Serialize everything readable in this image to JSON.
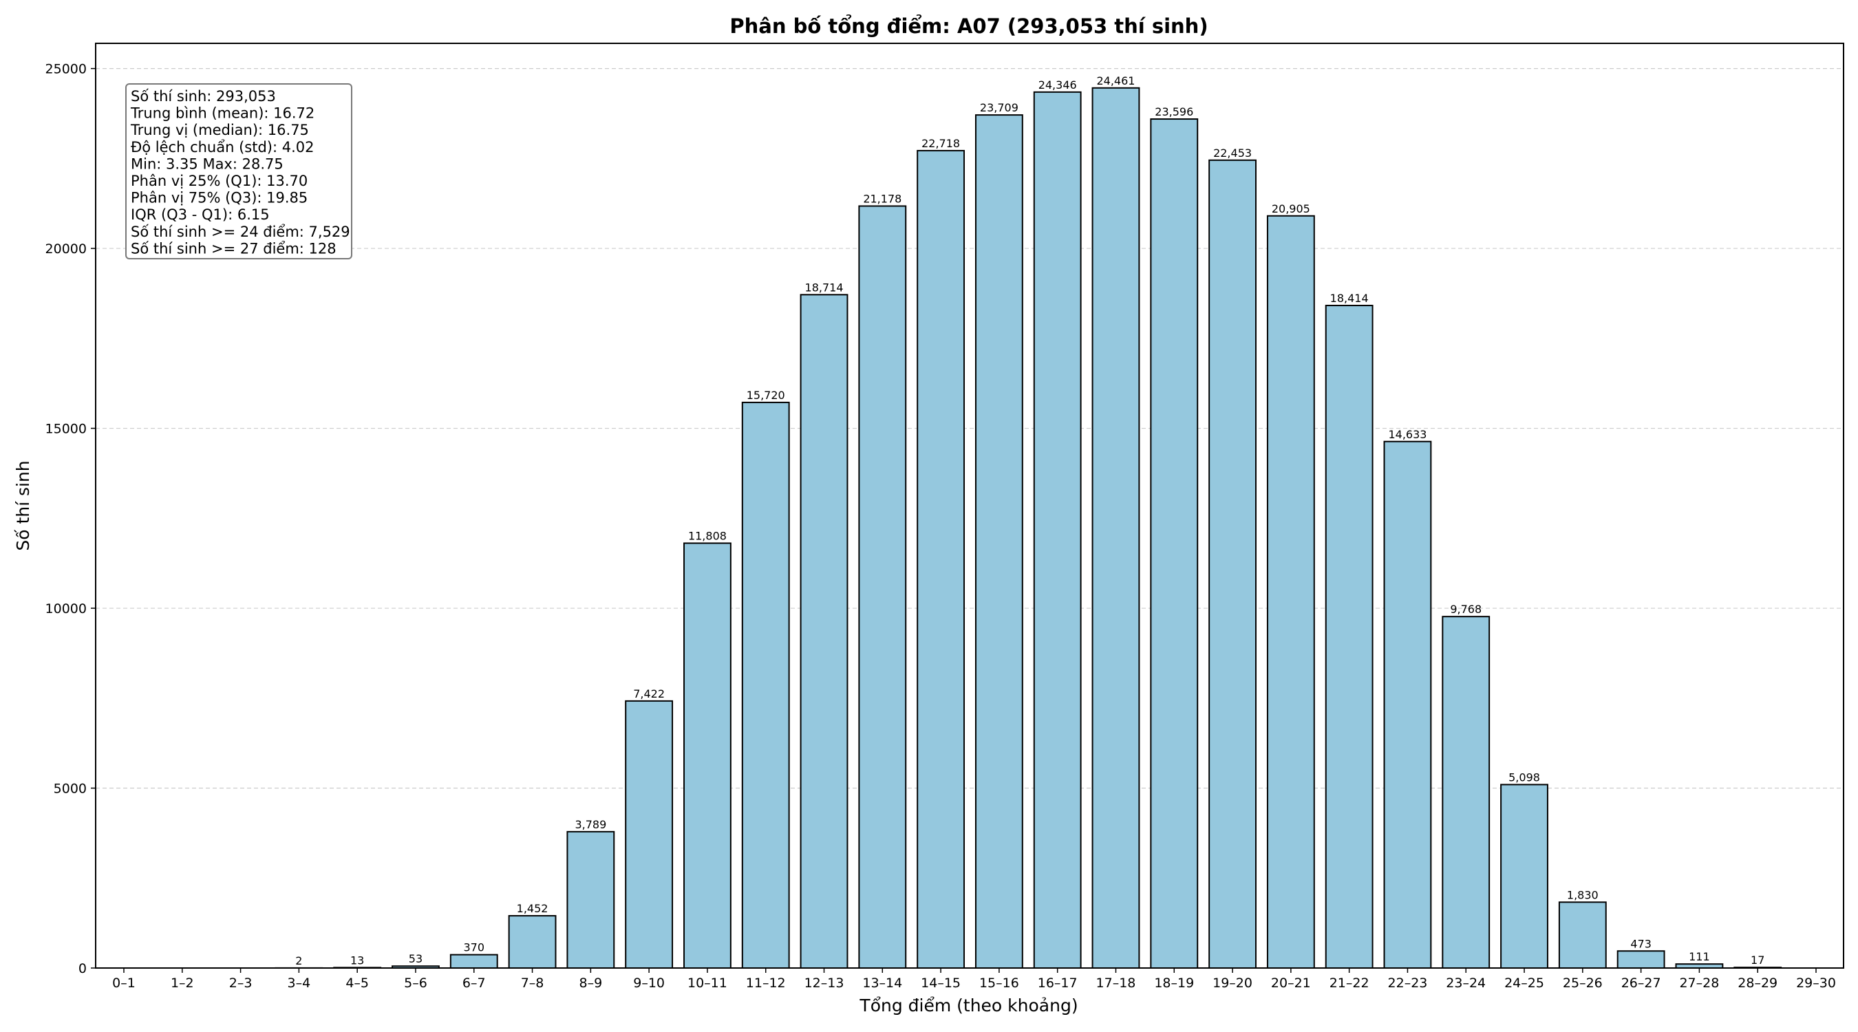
{
  "chart_data": {
    "type": "bar",
    "title": "Phân bố tổng điểm: A07 (293,053 thí sinh)",
    "xlabel": "Tổng điểm (theo khoảng)",
    "ylabel": "Số thí sinh",
    "ylim": [
      0,
      25700
    ],
    "yticks": [
      0,
      5000,
      10000,
      15000,
      20000,
      25000
    ],
    "grid": "y, dashed",
    "bar_color": "#95c8de",
    "edge_color": "#000000",
    "categories": [
      "0–1",
      "1–2",
      "2–3",
      "3–4",
      "4–5",
      "5–6",
      "6–7",
      "7–8",
      "8–9",
      "9–10",
      "10–11",
      "11–12",
      "12–13",
      "13–14",
      "14–15",
      "15–16",
      "16–17",
      "17–18",
      "18–19",
      "19–20",
      "20–21",
      "21–22",
      "22–23",
      "23–24",
      "24–25",
      "25–26",
      "26–27",
      "27–28",
      "28–29",
      "29–30"
    ],
    "values": [
      0,
      0,
      0,
      2,
      13,
      53,
      370,
      1452,
      3789,
      7422,
      11808,
      15720,
      18714,
      21178,
      22718,
      23709,
      24346,
      24461,
      23596,
      22453,
      20905,
      18414,
      14633,
      9768,
      5098,
      1830,
      473,
      111,
      17,
      0
    ],
    "value_labels": [
      "",
      "",
      "",
      "2",
      "13",
      "53",
      "370",
      "1,452",
      "3,789",
      "7,422",
      "11,808",
      "15,720",
      "18,714",
      "21,178",
      "22,718",
      "23,709",
      "24,346",
      "24,461",
      "23,596",
      "22,453",
      "20,905",
      "18,414",
      "14,633",
      "9,768",
      "5,098",
      "1,830",
      "473",
      "111",
      "17",
      ""
    ],
    "stats_box": [
      "Số thí sinh: 293,053",
      "Trung bình (mean): 16.72",
      "Trung vị (median): 16.75",
      "Độ lệch chuẩn (std): 4.02",
      "Min: 3.35   Max: 28.75",
      "Phân vị 25% (Q1): 13.70",
      "Phân vị 75% (Q3): 19.85",
      "IQR (Q3 - Q1): 6.15",
      "Số thí sinh >= 24 điểm: 7,529",
      "Số thí sinh >= 27 điểm: 128"
    ],
    "stats_box_position": "top-left"
  }
}
